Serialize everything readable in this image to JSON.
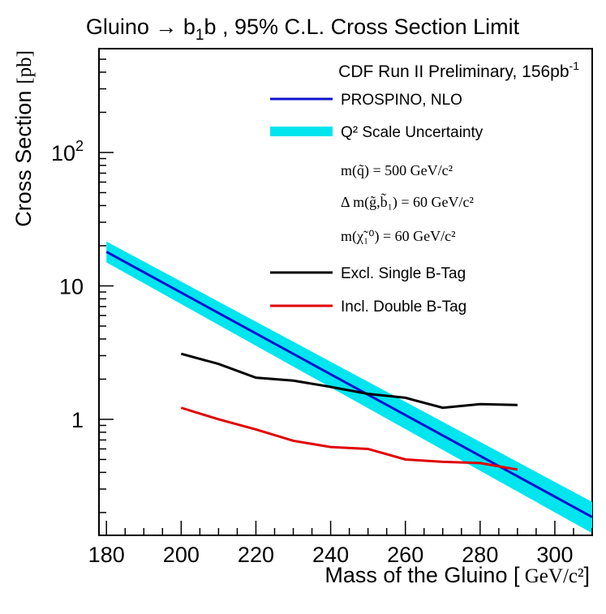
{
  "chart_data": {
    "type": "line",
    "title": {
      "prefix": "Gluino → ",
      "particle": "b",
      "particle_sub": "1",
      "suffix": "b , 95% C.L. Cross Section Limit"
    },
    "xlabel": {
      "main": "Mass of the Gluino [",
      "unit": " GeV/c²",
      "close": "]"
    },
    "ylabel": {
      "main": "Cross Section",
      "unit": "[pb]"
    },
    "x_ticks": [
      "180",
      "200",
      "220",
      "240",
      "260",
      "280",
      "300"
    ],
    "y_ticks": [
      "1",
      "10",
      "10²"
    ],
    "xlim": [
      178,
      310
    ],
    "ylim": [
      0.135,
      600
    ],
    "yscale": "log",
    "grid": false,
    "legend_placement": "top-right",
    "annotation": {
      "text": "CDF Run II Preliminary, 156pb",
      "sup": "-1"
    },
    "parameters": [
      "m(q̃) = 500  GeV/c²",
      "Δ m(g̃,b̃₁) = 60  GeV/c²",
      "m(χ̃₁⁰) = 60  GeV/c²"
    ],
    "series": [
      {
        "name": "PROSPINO, NLO",
        "color": "#1010d0",
        "x": [
          180,
          310
        ],
        "y": [
          18.0,
          0.185
        ]
      },
      {
        "name": "Q² Scale Uncertainty",
        "color": "#00e5ee",
        "band": true,
        "x": [
          180,
          310
        ],
        "y_low": [
          15.0,
          0.14
        ],
        "y_high": [
          21.5,
          0.24
        ]
      },
      {
        "name": "Excl. Single B-Tag",
        "color": "#000000",
        "x": [
          200,
          210,
          220,
          230,
          240,
          250,
          260,
          270,
          280,
          290
        ],
        "y": [
          3.1,
          2.6,
          2.05,
          1.95,
          1.75,
          1.55,
          1.45,
          1.22,
          1.3,
          1.28
        ]
      },
      {
        "name": "Incl. Double B-Tag",
        "color": "#e00000",
        "x": [
          200,
          210,
          220,
          230,
          240,
          250,
          260,
          270,
          280,
          290
        ],
        "y": [
          1.22,
          1.0,
          0.84,
          0.69,
          0.62,
          0.6,
          0.5,
          0.48,
          0.47,
          0.42
        ]
      }
    ]
  }
}
